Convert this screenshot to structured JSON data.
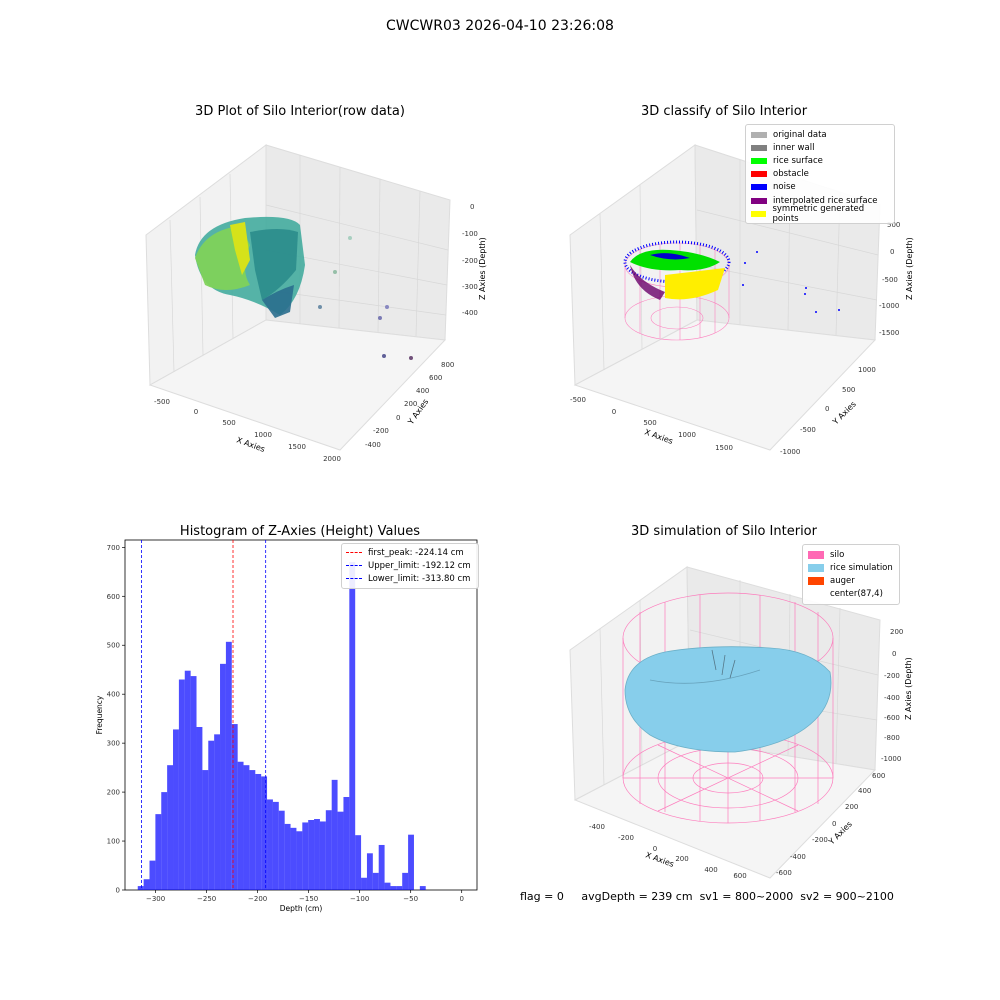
{
  "suptitle": "CWCWR03 2026-04-10 23:26:08",
  "panels": {
    "raw": {
      "title": "3D Plot of Silo Interior(row data)",
      "xlabel": "X Axies",
      "ylabel": "Y Axies",
      "zlabel": "Z Axies (Depth)",
      "xticks": [
        "-500",
        "0",
        "500",
        "1000",
        "1500",
        "2000"
      ],
      "yticks": [
        "-400",
        "-200",
        "0",
        "200",
        "400",
        "600",
        "800"
      ],
      "zticks": [
        "0",
        "-100",
        "-200",
        "-300",
        "-400"
      ]
    },
    "classify": {
      "title": "3D classify of Silo Interior",
      "xlabel": "X Axies",
      "ylabel": "Y Axies",
      "zlabel": "Z Axies (Depth)",
      "xticks": [
        "-500",
        "0",
        "500",
        "1000",
        "1500"
      ],
      "yticks": [
        "-1000",
        "-500",
        "0",
        "500",
        "1000"
      ],
      "zticks": [
        "500",
        "0",
        "-500",
        "-1000",
        "-1500"
      ],
      "legend": [
        {
          "label": "original data",
          "color": "#b0b0b0"
        },
        {
          "label": "inner wall",
          "color": "#808080"
        },
        {
          "label": "rice surface",
          "color": "#00ff00"
        },
        {
          "label": "obstacle",
          "color": "#ff0000"
        },
        {
          "label": "noise",
          "color": "#0000ff"
        },
        {
          "label": "interpolated rice surface",
          "color": "#800080"
        },
        {
          "label": "symmetric generated points",
          "color": "#ffff00"
        }
      ]
    },
    "simulation": {
      "title": "3D simulation of Silo Interior",
      "xlabel": "X Axies",
      "ylabel": "Y Axies",
      "zlabel": "Z Axies (Depth)",
      "xticks": [
        "-400",
        "-200",
        "0",
        "200",
        "400",
        "600"
      ],
      "yticks": [
        "-600",
        "-400",
        "-200",
        "0",
        "200",
        "400",
        "600"
      ],
      "zticks": [
        "200",
        "0",
        "-200",
        "-400",
        "-600",
        "-800",
        "-1000"
      ],
      "legend": [
        {
          "label": "silo",
          "color": "#ff69b4"
        },
        {
          "label": "rice simulation",
          "color": "#87ceeb"
        },
        {
          "label": "auger",
          "color": "#ff4500"
        },
        {
          "label": "center(87,4)",
          "color": ""
        }
      ]
    }
  },
  "footer": {
    "flag": "flag = 0",
    "avg": "avgDepth = 239 cm",
    "sv1": "sv1 = 800~2000",
    "sv2": "sv2 = 900~2100"
  },
  "chart_data": {
    "type": "bar",
    "title": "Histogram of Z-Axies (Height) Values",
    "xlabel": "Depth (cm)",
    "ylabel": "Frequency",
    "xlim": [
      -330,
      15
    ],
    "ylim": [
      0,
      715
    ],
    "xticks": [
      -300,
      -250,
      -200,
      -150,
      -100,
      -50,
      0
    ],
    "yticks": [
      0,
      100,
      200,
      300,
      400,
      500,
      600,
      700
    ],
    "bar_color": "#0000ff",
    "bin_start": -317.5,
    "bin_width": 5.76,
    "values": [
      8,
      22,
      60,
      155,
      200,
      255,
      328,
      430,
      448,
      437,
      333,
      245,
      305,
      318,
      462,
      507,
      339,
      262,
      255,
      245,
      237,
      232,
      185,
      180,
      162,
      135,
      127,
      120,
      138,
      143,
      145,
      140,
      163,
      225,
      160,
      190,
      670,
      112,
      25,
      75,
      35,
      92,
      15,
      8,
      8,
      35,
      113,
      0,
      8
    ],
    "vlines": [
      {
        "label": "first_peak: -224.14 cm",
        "x": -224.14,
        "color": "#ff0000"
      },
      {
        "label": "Upper_limit: -192.12 cm",
        "x": -192.12,
        "color": "#0000ff"
      },
      {
        "label": "Lower_limit: -313.80 cm",
        "x": -313.8,
        "color": "#0000ff"
      }
    ],
    "legend_position": "top-right"
  }
}
